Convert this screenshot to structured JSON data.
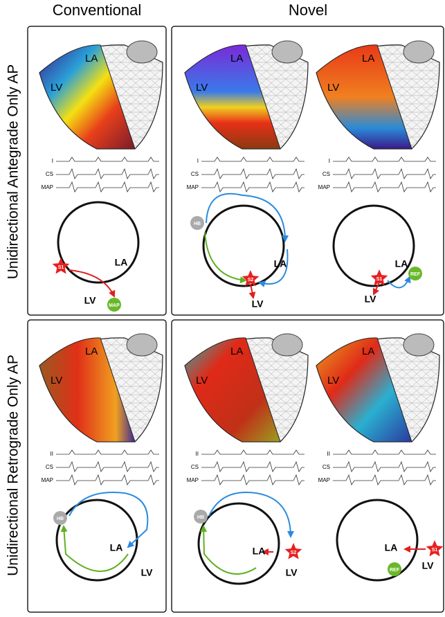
{
  "header": {
    "left": "Conventional",
    "right": "Novel"
  },
  "rows": [
    "Unidirectional Antegrade Only AP",
    "Unidirectional Retrograde Only AP"
  ],
  "panels": [
    {
      "map_labels": [
        "LA",
        "LV"
      ],
      "traces": [
        "I",
        "CS",
        "MAP"
      ],
      "diagram": [
        "S1",
        "LA",
        "LV",
        "MAP"
      ]
    },
    {
      "map_labels": [
        "LA",
        "LV"
      ],
      "traces": [
        "I",
        "CS",
        "MAP"
      ],
      "diagram": [
        "HB",
        "LA",
        "S2",
        "LV"
      ]
    },
    {
      "map_labels": [
        "LA",
        "LV"
      ],
      "traces": [
        "I",
        "CS",
        "MAP"
      ],
      "diagram": [
        "LA",
        "S1",
        "REF",
        "LV"
      ]
    },
    {
      "map_labels": [
        "LA",
        "LV"
      ],
      "traces": [
        "II",
        "CS",
        "MAP"
      ],
      "diagram": [
        "HB",
        "LA",
        "LV"
      ]
    },
    {
      "map_labels": [
        "LA",
        "LV"
      ],
      "traces": [
        "II",
        "CS",
        "MAP"
      ],
      "diagram": [
        "HB",
        "LA",
        "S2",
        "LV"
      ]
    },
    {
      "map_labels": [
        "LA",
        "LV"
      ],
      "traces": [
        "II",
        "CS",
        "MAP"
      ],
      "diagram": [
        "LA",
        "S1",
        "REF",
        "LV"
      ]
    }
  ]
}
